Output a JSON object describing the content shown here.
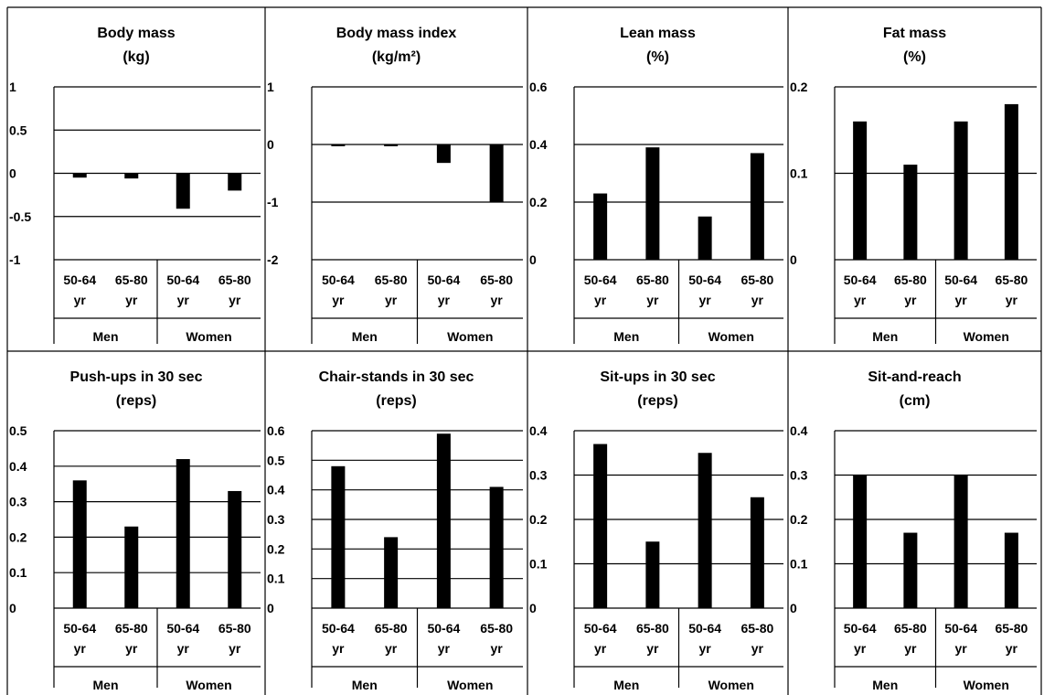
{
  "colors": {
    "bar": "#000000",
    "grid": "#000000",
    "background": "#ffffff"
  },
  "chart_data": [
    {
      "type": "bar",
      "title": "Body mass",
      "unit_label": "(kg)",
      "categories": [
        "Men 50-64 yr",
        "Men 65-80 yr",
        "Women 50-64 yr",
        "Women 65-80 yr"
      ],
      "category_top": [
        "50-64",
        "65-80",
        "50-64",
        "65-80"
      ],
      "category_bottom": [
        "yr",
        "yr",
        "yr",
        "yr"
      ],
      "groups": [
        "Men",
        "Women"
      ],
      "values": [
        -0.05,
        -0.06,
        -0.41,
        -0.2
      ],
      "ylim": [
        -1,
        1
      ],
      "yticks": [
        1,
        0.5,
        0,
        -0.5,
        -1
      ],
      "ytick_labels": [
        "1",
        "0.5",
        "0",
        "-0.5",
        "-1"
      ],
      "grid": true
    },
    {
      "type": "bar",
      "title": "Body mass index",
      "unit_label": "(kg/m²)",
      "categories": [
        "Men 50-64 yr",
        "Men 65-80 yr",
        "Women 50-64 yr",
        "Women 65-80 yr"
      ],
      "category_top": [
        "50-64",
        "65-80",
        "50-64",
        "65-80"
      ],
      "category_bottom": [
        "yr",
        "yr",
        "yr",
        "yr"
      ],
      "groups": [
        "Men",
        "Women"
      ],
      "values": [
        -0.03,
        -0.03,
        -0.32,
        -1.0
      ],
      "ylim": [
        -2,
        1
      ],
      "yticks": [
        1,
        0,
        -1,
        -2
      ],
      "ytick_labels": [
        "1",
        "0",
        "-1",
        "-2"
      ],
      "grid": true
    },
    {
      "type": "bar",
      "title": "Lean mass",
      "unit_label": "(%)",
      "categories": [
        "Men 50-64 yr",
        "Men 65-80 yr",
        "Women 50-64 yr",
        "Women 65-80 yr"
      ],
      "category_top": [
        "50-64",
        "65-80",
        "50-64",
        "65-80"
      ],
      "category_bottom": [
        "yr",
        "yr",
        "yr",
        "yr"
      ],
      "groups": [
        "Men",
        "Women"
      ],
      "values": [
        0.23,
        0.39,
        0.15,
        0.37
      ],
      "ylim": [
        0,
        0.6
      ],
      "yticks": [
        0.6,
        0.4,
        0.2,
        0
      ],
      "ytick_labels": [
        "0.6",
        "0.4",
        "0.2",
        "0"
      ],
      "grid": true
    },
    {
      "type": "bar",
      "title": "Fat mass",
      "unit_label": "(%)",
      "categories": [
        "Men 50-64 yr",
        "Men 65-80 yr",
        "Women 50-64 yr",
        "Women 65-80 yr"
      ],
      "category_top": [
        "50-64",
        "65-80",
        "50-64",
        "65-80"
      ],
      "category_bottom": [
        "yr",
        "yr",
        "yr",
        "yr"
      ],
      "groups": [
        "Men",
        "Women"
      ],
      "values": [
        0.16,
        0.11,
        0.16,
        0.18
      ],
      "ylim": [
        0,
        0.2
      ],
      "yticks": [
        0.2,
        0.1,
        0
      ],
      "ytick_labels": [
        "0.2",
        "0.1",
        "0"
      ],
      "grid": true
    },
    {
      "type": "bar",
      "title": "Push-ups in 30 sec",
      "unit_label": "(reps)",
      "categories": [
        "Men 50-64 yr",
        "Men 65-80 yr",
        "Women 50-64 yr",
        "Women 65-80 yr"
      ],
      "category_top": [
        "50-64",
        "65-80",
        "50-64",
        "65-80"
      ],
      "category_bottom": [
        "yr",
        "yr",
        "yr",
        "yr"
      ],
      "groups": [
        "Men",
        "Women"
      ],
      "values": [
        0.36,
        0.23,
        0.42,
        0.33
      ],
      "ylim": [
        0,
        0.5
      ],
      "yticks": [
        0.5,
        0.4,
        0.3,
        0.2,
        0.1,
        0
      ],
      "ytick_labels": [
        "0.5",
        "0.4",
        "0.3",
        "0.2",
        "0.1",
        "0"
      ],
      "grid": true
    },
    {
      "type": "bar",
      "title": "Chair-stands in 30 sec",
      "unit_label": "(reps)",
      "categories": [
        "Men 50-64 yr",
        "Men 65-80 yr",
        "Women 50-64 yr",
        "Women 65-80 yr"
      ],
      "category_top": [
        "50-64",
        "65-80",
        "50-64",
        "65-80"
      ],
      "category_bottom": [
        "yr",
        "yr",
        "yr",
        "yr"
      ],
      "groups": [
        "Men",
        "Women"
      ],
      "values": [
        0.48,
        0.24,
        0.59,
        0.41
      ],
      "ylim": [
        0,
        0.6
      ],
      "yticks": [
        0.6,
        0.5,
        0.4,
        0.3,
        0.2,
        0.1,
        0
      ],
      "ytick_labels": [
        "0.6",
        "0.5",
        "0.4",
        "0.3",
        "0.2",
        "0.1",
        "0"
      ],
      "grid": true
    },
    {
      "type": "bar",
      "title": "Sit-ups in 30 sec",
      "unit_label": "(reps)",
      "categories": [
        "Men 50-64 yr",
        "Men 65-80 yr",
        "Women 50-64 yr",
        "Women 65-80 yr"
      ],
      "category_top": [
        "50-64",
        "65-80",
        "50-64",
        "65-80"
      ],
      "category_bottom": [
        "yr",
        "yr",
        "yr",
        "yr"
      ],
      "groups": [
        "Men",
        "Women"
      ],
      "values": [
        0.37,
        0.15,
        0.35,
        0.25
      ],
      "ylim": [
        0,
        0.4
      ],
      "yticks": [
        0.4,
        0.3,
        0.2,
        0.1,
        0
      ],
      "ytick_labels": [
        "0.4",
        "0.3",
        "0.2",
        "0.1",
        "0"
      ],
      "grid": true
    },
    {
      "type": "bar",
      "title": "Sit-and-reach",
      "unit_label": "(cm)",
      "categories": [
        "Men 50-64 yr",
        "Men 65-80 yr",
        "Women 50-64 yr",
        "Women 65-80 yr"
      ],
      "category_top": [
        "50-64",
        "65-80",
        "50-64",
        "65-80"
      ],
      "category_bottom": [
        "yr",
        "yr",
        "yr",
        "yr"
      ],
      "groups": [
        "Men",
        "Women"
      ],
      "values": [
        0.3,
        0.17,
        0.3,
        0.17
      ],
      "ylim": [
        0,
        0.4
      ],
      "yticks": [
        0.4,
        0.3,
        0.2,
        0.1,
        0
      ],
      "ytick_labels": [
        "0.4",
        "0.3",
        "0.2",
        "0.1",
        "0"
      ],
      "grid": true
    }
  ]
}
